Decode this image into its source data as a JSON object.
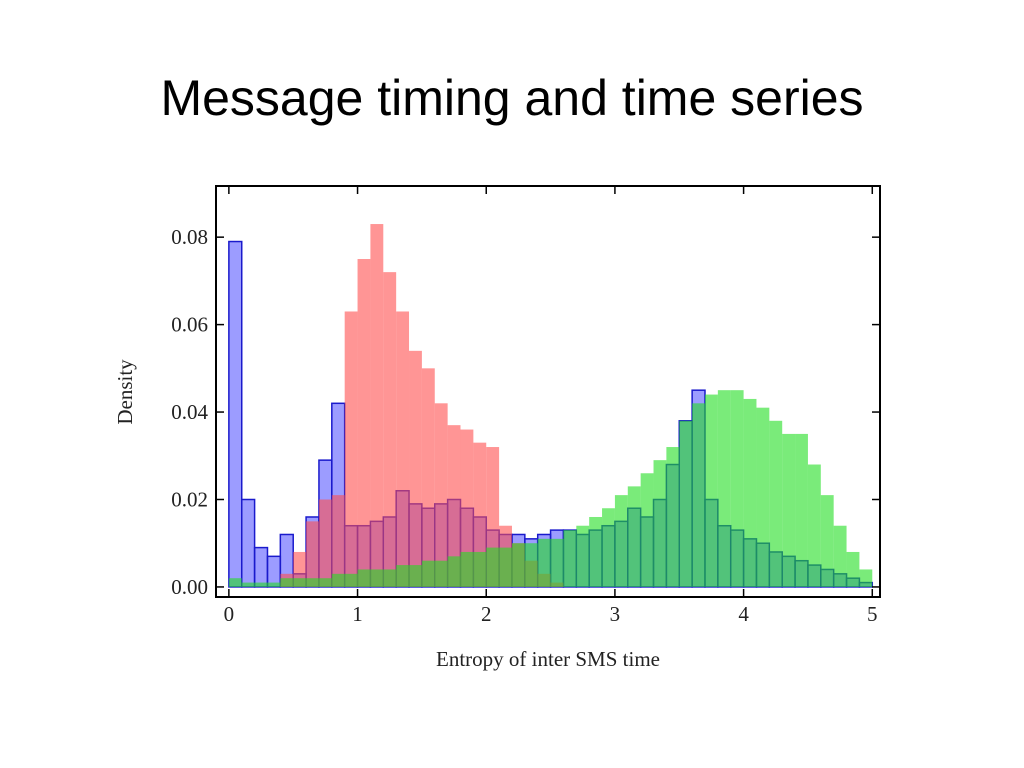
{
  "chart_data": {
    "type": "histogram",
    "title": "Message timing and time series",
    "xlabel": "Entropy of inter  SMS time",
    "ylabel": "Density",
    "bins": [
      0,
      0.1,
      0.2,
      0.3,
      0.4,
      0.5,
      0.6,
      0.7,
      0.8,
      0.9,
      1,
      1.1,
      1.2,
      1.3,
      1.4,
      1.5,
      1.6,
      1.7,
      1.8,
      1.9,
      2,
      2.1,
      2.2,
      2.3,
      2.4,
      2.5,
      2.6,
      2.7,
      2.8,
      2.9,
      3,
      3.1,
      3.2,
      3.3,
      3.4,
      3.5,
      3.6,
      3.7,
      3.8,
      3.9,
      4,
      4.1,
      4.2,
      4.3,
      4.4,
      4.5,
      4.6,
      4.7,
      4.8,
      4.9,
      5
    ],
    "series": [
      {
        "color": "#5a5aff",
        "edge": "#1a1acc",
        "values": [
          0.079,
          0.02,
          0.009,
          0.007,
          0.012,
          0.003,
          0.016,
          0.029,
          0.042,
          0.014,
          0.014,
          0.015,
          0.016,
          0.022,
          0.019,
          0.018,
          0.019,
          0.02,
          0.018,
          0.016,
          0.013,
          0.012,
          0.012,
          0.011,
          0.012,
          0.013,
          0.013,
          0.012,
          0.013,
          0.014,
          0.015,
          0.018,
          0.016,
          0.02,
          0.028,
          0.038,
          0.045,
          0.02,
          0.014,
          0.013,
          0.011,
          0.01,
          0.008,
          0.007,
          0.006,
          0.005,
          0.004,
          0.003,
          0.002,
          0.001
        ]
      },
      {
        "color": "#ff4f4f",
        "values": [
          0,
          0,
          0,
          0,
          0.003,
          0.008,
          0.015,
          0.02,
          0.021,
          0.063,
          0.075,
          0.083,
          0.072,
          0.063,
          0.054,
          0.05,
          0.042,
          0.037,
          0.036,
          0.033,
          0.032,
          0.014,
          0.01,
          0.006,
          0.003,
          0.001,
          0,
          0,
          0,
          0,
          0,
          0,
          0,
          0,
          0,
          0,
          0,
          0,
          0,
          0,
          0,
          0,
          0,
          0,
          0,
          0,
          0,
          0,
          0,
          0
        ]
      },
      {
        "color": "#22dd22",
        "values": [
          0.002,
          0.001,
          0.001,
          0.001,
          0.002,
          0.002,
          0.002,
          0.002,
          0.003,
          0.003,
          0.004,
          0.004,
          0.004,
          0.005,
          0.005,
          0.006,
          0.006,
          0.007,
          0.008,
          0.008,
          0.009,
          0.009,
          0.01,
          0.01,
          0.011,
          0.011,
          0.013,
          0.014,
          0.016,
          0.018,
          0.021,
          0.023,
          0.026,
          0.029,
          0.032,
          0.038,
          0.042,
          0.044,
          0.045,
          0.045,
          0.043,
          0.041,
          0.038,
          0.035,
          0.035,
          0.028,
          0.021,
          0.014,
          0.008,
          0.004
        ]
      }
    ],
    "xlim": [
      -0.1,
      5.06
    ],
    "ylim": [
      -0.0023,
      0.0917
    ],
    "xticks": [
      0,
      1,
      2,
      3,
      4,
      5
    ],
    "yticks": [
      {
        "value": 0,
        "label": "0.00"
      },
      {
        "value": 0.02,
        "label": "0.02"
      },
      {
        "value": 0.04,
        "label": "0.04"
      },
      {
        "value": 0.06,
        "label": "0.06"
      },
      {
        "value": 0.08,
        "label": "0.08"
      }
    ]
  }
}
